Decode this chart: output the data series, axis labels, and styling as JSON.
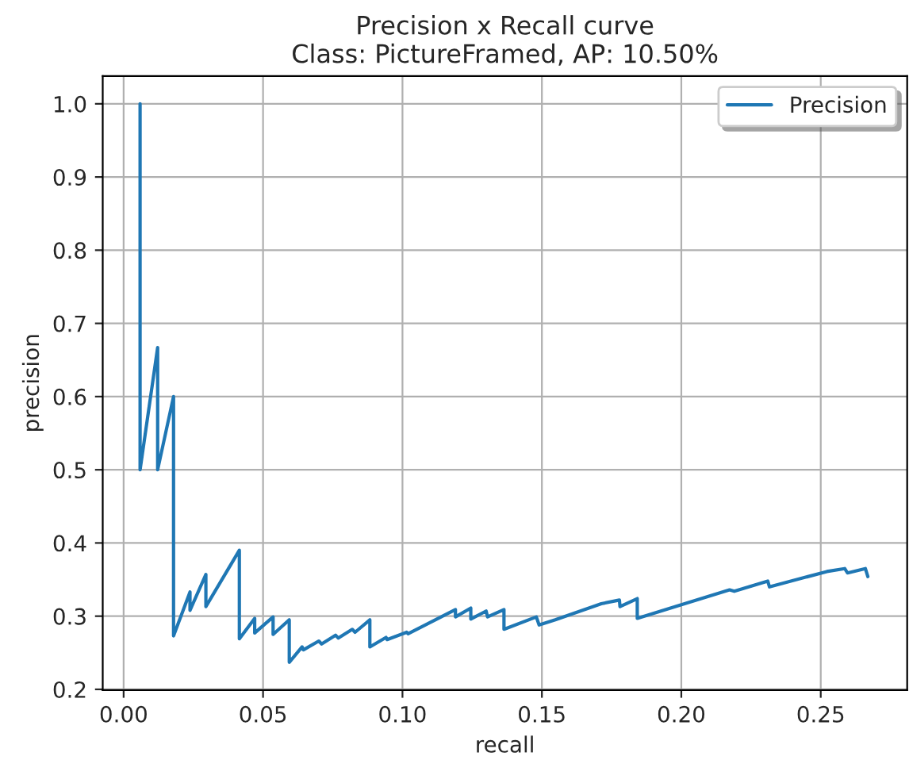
{
  "chart_data": {
    "type": "line",
    "title": "Precision x Recall curve\nClass: PictureFramed, AP: 10.50%",
    "xlabel": "recall",
    "ylabel": "precision",
    "series": [
      {
        "name": "Precision",
        "color": "#1f77b4",
        "x": [
          0.0059,
          0.0059,
          0.0122,
          0.0122,
          0.0179,
          0.0179,
          0.0238,
          0.0238,
          0.0295,
          0.0295,
          0.0415,
          0.0415,
          0.047,
          0.047,
          0.0536,
          0.0536,
          0.0594,
          0.0594,
          0.064,
          0.0645,
          0.07,
          0.071,
          0.076,
          0.077,
          0.082,
          0.083,
          0.0883,
          0.0883,
          0.0941,
          0.0945,
          0.1015,
          0.102,
          0.119,
          0.119,
          0.1245,
          0.1245,
          0.13,
          0.1305,
          0.1364,
          0.1364,
          0.148,
          0.149,
          0.1548,
          0.1713,
          0.1778,
          0.178,
          0.1842,
          0.1842,
          0.2173,
          0.219,
          0.231,
          0.2316,
          0.2522,
          0.2586,
          0.2596,
          0.266,
          0.2669
        ],
        "values": [
          1.0,
          0.5,
          0.667,
          0.5,
          0.6,
          0.273,
          0.333,
          0.308,
          0.357,
          0.313,
          0.39,
          0.269,
          0.297,
          0.277,
          0.299,
          0.275,
          0.295,
          0.237,
          0.258,
          0.254,
          0.266,
          0.262,
          0.274,
          0.27,
          0.282,
          0.278,
          0.295,
          0.258,
          0.271,
          0.268,
          0.278,
          0.276,
          0.309,
          0.299,
          0.311,
          0.296,
          0.307,
          0.299,
          0.309,
          0.282,
          0.299,
          0.288,
          0.295,
          0.317,
          0.322,
          0.313,
          0.324,
          0.297,
          0.336,
          0.334,
          0.348,
          0.34,
          0.361,
          0.365,
          0.359,
          0.365,
          0.354
        ]
      }
    ],
    "xlim": [
      -0.0075,
      0.281
    ],
    "ylim": [
      0.199,
      1.038
    ],
    "xticks": [
      {
        "value": 0.0,
        "label": "0.00"
      },
      {
        "value": 0.05,
        "label": "0.05"
      },
      {
        "value": 0.1,
        "label": "0.10"
      },
      {
        "value": 0.15,
        "label": "0.15"
      },
      {
        "value": 0.2,
        "label": "0.20"
      },
      {
        "value": 0.25,
        "label": "0.25"
      }
    ],
    "yticks": [
      {
        "value": 0.2,
        "label": "0.2"
      },
      {
        "value": 0.3,
        "label": "0.3"
      },
      {
        "value": 0.4,
        "label": "0.4"
      },
      {
        "value": 0.5,
        "label": "0.5"
      },
      {
        "value": 0.6,
        "label": "0.6"
      },
      {
        "value": 0.7,
        "label": "0.7"
      },
      {
        "value": 0.8,
        "label": "0.8"
      },
      {
        "value": 0.9,
        "label": "0.9"
      },
      {
        "value": 1.0,
        "label": "1.0"
      }
    ],
    "grid": true,
    "legend": "top right",
    "marker": "none",
    "line_style": "solid"
  }
}
